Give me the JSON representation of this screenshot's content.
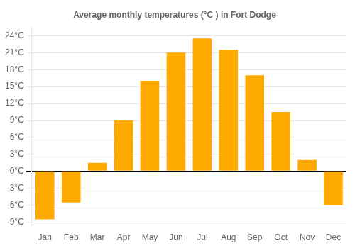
{
  "chart_data": {
    "type": "bar",
    "title": "Average monthly temperatures (°C ) in Fort Dodge",
    "categories": [
      "Jan",
      "Feb",
      "Mar",
      "Apr",
      "May",
      "Jun",
      "Jul",
      "Aug",
      "Sep",
      "Oct",
      "Nov",
      "Dec"
    ],
    "values": [
      -8.5,
      -5.5,
      1.5,
      9.0,
      16.0,
      21.0,
      23.5,
      21.5,
      17.0,
      10.5,
      2.0,
      -6.0
    ],
    "color": "#FFAA00",
    "ylim": [
      -9.5,
      25.5
    ],
    "yticks": [
      {
        "value": -9,
        "label": "-9°C"
      },
      {
        "value": -6,
        "label": "-6°C"
      },
      {
        "value": -3,
        "label": "-3°C"
      },
      {
        "value": 0,
        "label": "0°C"
      },
      {
        "value": 3,
        "label": "3°C"
      },
      {
        "value": 6,
        "label": "6°C"
      },
      {
        "value": 9,
        "label": "9°C"
      },
      {
        "value": 12,
        "label": "12°C"
      },
      {
        "value": 15,
        "label": "15°C"
      },
      {
        "value": 18,
        "label": "18°C"
      },
      {
        "value": 21,
        "label": "21°C"
      },
      {
        "value": 24,
        "label": "24°C"
      }
    ],
    "grid": true
  }
}
